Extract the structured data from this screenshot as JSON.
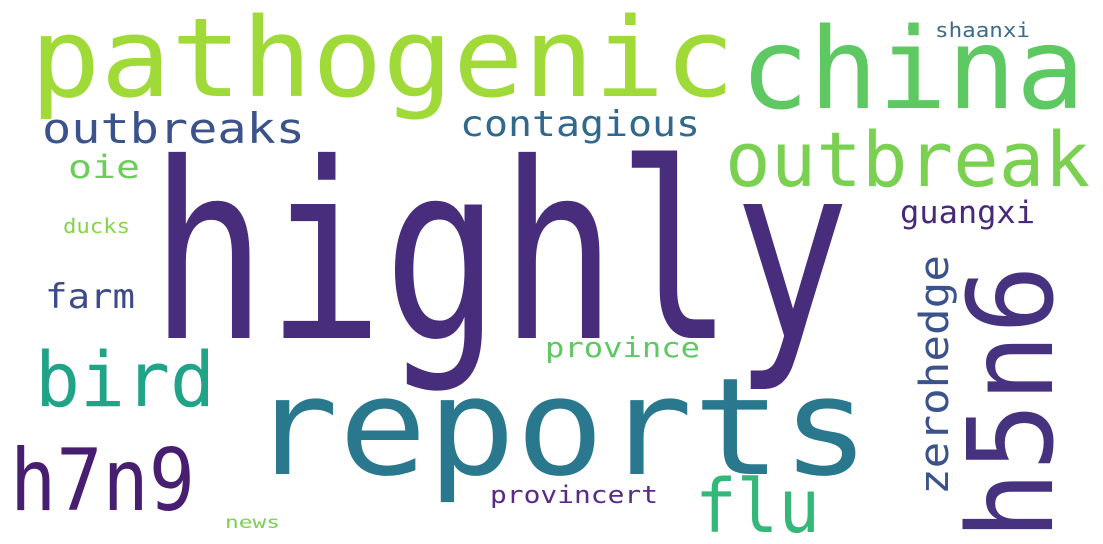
{
  "words": [
    "highly",
    "pathogenic",
    "china",
    "reports",
    "outbreak",
    "h5n6",
    "bird",
    "h7n9",
    "flu",
    "outbreaks",
    "contagious",
    "zerohedge",
    "guangxi",
    "farm",
    "oie",
    "province",
    "provincert",
    "ducks",
    "shaanxi",
    "news"
  ]
}
